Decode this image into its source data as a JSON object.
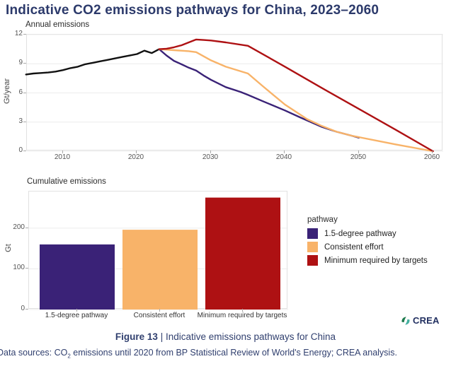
{
  "title": "Indicative CO2 emissions pathways for China, 2023–2060",
  "annual_chart": {
    "subtitle": "Annual emissions",
    "ylabel": "Gt/year"
  },
  "cumulative_chart": {
    "subtitle": "Cumulative emissions",
    "ylabel": "Gt"
  },
  "legend": {
    "title": "pathway",
    "items": [
      {
        "label": "1.5-degree pathway",
        "color": "#3a2277"
      },
      {
        "label": "Consistent effort",
        "color": "#f8b369"
      },
      {
        "label": "Minimum required by targets",
        "color": "#ae1113"
      }
    ]
  },
  "branding": {
    "name": "CREA",
    "icon": "crea-swirl-icon",
    "text_color": "#223061",
    "icon_colors": [
      "#1e7a4d",
      "#45b0a0"
    ]
  },
  "caption": {
    "figure_label": "Figure 13",
    "separator": " | ",
    "text": "Indicative emissions pathways for China"
  },
  "source": {
    "prefix": "Data sources: CO",
    "subscript": "2",
    "text": " emissions until 2020 from BP Statistical Review of World's Energy; CREA analysis."
  },
  "colors": {
    "title": "#2c3a6b",
    "caption": "#31406f",
    "historical": "#111111",
    "pathway_15": "#3a2277",
    "consistent": "#f8b369",
    "minimum": "#ae1113"
  },
  "chart_data": [
    {
      "type": "line",
      "title": "Annual emissions",
      "ylabel": "Gt/year",
      "ylim": [
        0,
        12
      ],
      "xlim": [
        2005,
        2061
      ],
      "yticks": [
        0,
        3,
        6,
        9,
        12
      ],
      "xticks": [
        2010,
        2020,
        2030,
        2040,
        2050,
        2060
      ],
      "grid": true,
      "series": [
        {
          "name": "Historical",
          "color": "#111111",
          "width": 2.4,
          "x": [
            2005,
            2006,
            2007,
            2008,
            2009,
            2010,
            2011,
            2012,
            2013,
            2014,
            2015,
            2016,
            2017,
            2018,
            2019,
            2020,
            2021,
            2022,
            2023
          ],
          "y": [
            7.9,
            8.0,
            8.05,
            8.1,
            8.2,
            8.35,
            8.55,
            8.7,
            8.95,
            9.1,
            9.25,
            9.4,
            9.55,
            9.7,
            9.85,
            10.0,
            10.35,
            10.1,
            10.5
          ]
        },
        {
          "name": "1.5-degree pathway",
          "color": "#3a2277",
          "width": 2.4,
          "x": [
            2023,
            2024,
            2025,
            2026,
            2027,
            2028,
            2029,
            2030,
            2032,
            2034,
            2035,
            2037,
            2040,
            2042,
            2045,
            2047,
            2049,
            2050
          ],
          "y": [
            10.5,
            9.85,
            9.3,
            8.95,
            8.6,
            8.3,
            7.8,
            7.35,
            6.6,
            6.1,
            5.8,
            5.15,
            4.2,
            3.5,
            2.5,
            2.0,
            1.6,
            1.4
          ]
        },
        {
          "name": "Consistent effort",
          "color": "#f8b369",
          "width": 2.4,
          "x": [
            2023,
            2025,
            2027,
            2028,
            2030,
            2032,
            2035,
            2037,
            2040,
            2043,
            2045,
            2047,
            2049,
            2050,
            2055,
            2060
          ],
          "y": [
            10.5,
            10.4,
            10.3,
            10.2,
            9.35,
            8.7,
            8.0,
            6.7,
            4.8,
            3.3,
            2.6,
            2.0,
            1.6,
            1.45,
            0.7,
            0
          ]
        },
        {
          "name": "Minimum required by targets",
          "color": "#ae1113",
          "width": 2.4,
          "x": [
            2023,
            2024,
            2025,
            2026,
            2027,
            2028,
            2029,
            2030,
            2032,
            2035,
            2040,
            2045,
            2050,
            2055,
            2060
          ],
          "y": [
            10.5,
            10.55,
            10.7,
            10.9,
            11.2,
            11.5,
            11.45,
            11.4,
            11.2,
            10.85,
            8.7,
            6.5,
            4.35,
            2.2,
            0
          ]
        }
      ]
    },
    {
      "type": "bar",
      "title": "Cumulative emissions",
      "ylabel": "Gt",
      "ylim": [
        0,
        290
      ],
      "yticks": [
        0,
        100,
        200
      ],
      "grid": true,
      "categories": [
        "1.5-degree pathway",
        "Consistent effort",
        "Minimum required by targets"
      ],
      "values": [
        160,
        196,
        275
      ],
      "colors": [
        "#3a2277",
        "#f8b369",
        "#ae1113"
      ]
    }
  ]
}
